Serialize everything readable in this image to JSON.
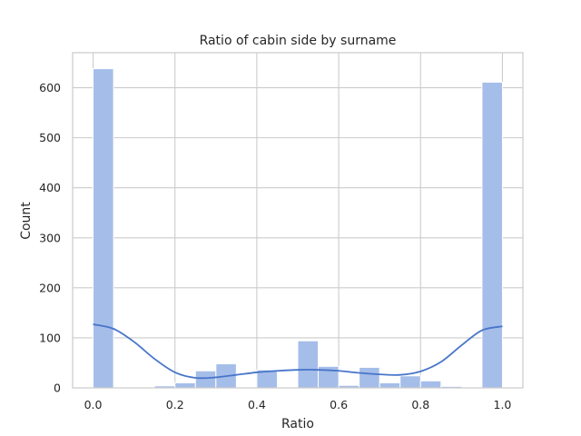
{
  "chart_data": {
    "type": "bar",
    "title": "Ratio of cabin side by surname",
    "xlabel": "Ratio",
    "ylabel": "Count",
    "xlim": [
      -0.05,
      1.05
    ],
    "ylim": [
      0,
      670
    ],
    "x_ticks": [
      0.0,
      0.2,
      0.4,
      0.6,
      0.8,
      1.0
    ],
    "x_tick_labels": [
      "0.0",
      "0.2",
      "0.4",
      "0.6",
      "0.8",
      "1.0"
    ],
    "y_ticks": [
      0,
      100,
      200,
      300,
      400,
      500,
      600
    ],
    "y_tick_labels": [
      "0",
      "100",
      "200",
      "300",
      "400",
      "500",
      "600"
    ],
    "grid": true,
    "bin_edges": [
      0.0,
      0.05,
      0.1,
      0.15,
      0.2,
      0.25,
      0.3,
      0.35,
      0.4,
      0.45,
      0.5,
      0.55,
      0.6,
      0.65,
      0.7,
      0.75,
      0.8,
      0.85,
      0.9,
      0.95,
      1.0
    ],
    "counts": [
      638,
      1,
      0,
      4,
      10,
      34,
      48,
      1,
      36,
      1,
      94,
      43,
      5,
      41,
      10,
      24,
      14,
      3,
      1,
      611
    ],
    "kde": {
      "x": [
        0.0,
        0.05,
        0.1,
        0.15,
        0.2,
        0.25,
        0.3,
        0.35,
        0.4,
        0.45,
        0.5,
        0.55,
        0.6,
        0.65,
        0.7,
        0.75,
        0.8,
        0.85,
        0.9,
        0.95,
        1.0
      ],
      "y": [
        127,
        118,
        92,
        58,
        31,
        20,
        21,
        26,
        31,
        34,
        36,
        36,
        34,
        30,
        27,
        26,
        33,
        52,
        85,
        115,
        123
      ]
    },
    "colors": {
      "bar_fill": "#a5bde9",
      "bar_edge": "#ffffff",
      "kde_line": "#4875c9",
      "grid": "#cccccc",
      "frame": "#cccccc"
    }
  }
}
